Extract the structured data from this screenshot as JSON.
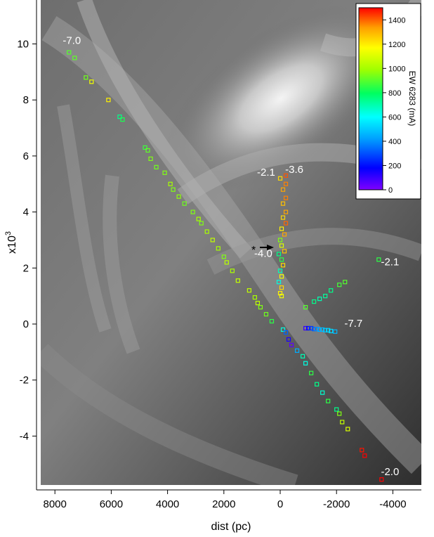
{
  "chart_data": {
    "type": "scatter",
    "xlabel": "dist (pc)",
    "ylabel": "x10",
    "ylabel_exponent": "3",
    "xlim": [
      8600,
      -5000
    ],
    "ylim": [
      -5.7,
      11.5
    ],
    "x_ticks": [
      8000,
      6000,
      4000,
      2000,
      0,
      -2000,
      -4000
    ],
    "x_tick_labels": [
      "8000",
      "6000",
      "4000",
      "2000",
      "0",
      "-2000",
      "-4000"
    ],
    "y_ticks": [
      -4,
      -2,
      0,
      2,
      4,
      6,
      8,
      10
    ],
    "y_tick_labels": [
      "-4",
      "-2",
      "0",
      "2",
      "4",
      "6",
      "8",
      "10"
    ],
    "background": "grayscale spiral galaxy image",
    "colorbar": {
      "label": "EW 6283 (mA)",
      "ticks": [
        0,
        200,
        400,
        600,
        800,
        1000,
        1200,
        1400
      ],
      "tick_labels": [
        "0",
        "200",
        "400",
        "600",
        "800",
        "1000",
        "1200",
        "1400"
      ],
      "range": [
        0,
        1500
      ],
      "colors": [
        "#7f00ff",
        "#0000ff",
        "#00a0ff",
        "#00ffff",
        "#00ff60",
        "#a0ff00",
        "#ffff00",
        "#ffa000",
        "#ff0000"
      ]
    },
    "sun_marker": "*",
    "annotations": [
      {
        "text": "-7.0",
        "x": 7400,
        "y": 10.0
      },
      {
        "text": "-2.1",
        "x": 500,
        "y": 5.3
      },
      {
        "text": "-3.6",
        "x": -500,
        "y": 5.4
      },
      {
        "text": "-4.0",
        "x": 600,
        "y": 2.4
      },
      {
        "text": "-2.1",
        "x": -3900,
        "y": 2.1
      },
      {
        "text": "-7.7",
        "x": -2600,
        "y": -0.1
      },
      {
        "text": "-2.0",
        "x": -3900,
        "y": -5.4
      }
    ],
    "series": [
      {
        "id": "sightline-7.0",
        "points": [
          [
            7500,
            9.7,
            850
          ],
          [
            7300,
            9.5,
            860
          ],
          [
            6900,
            8.8,
            880
          ],
          [
            6700,
            8.65,
            1100
          ],
          [
            6100,
            8.0,
            1150
          ],
          [
            5700,
            7.4,
            700
          ],
          [
            5600,
            7.3,
            780
          ],
          [
            4800,
            6.3,
            820
          ],
          [
            4700,
            6.2,
            860
          ],
          [
            4600,
            5.9,
            900
          ],
          [
            4400,
            5.6,
            880
          ],
          [
            4100,
            5.4,
            900
          ],
          [
            3900,
            5.0,
            950
          ],
          [
            3800,
            4.8,
            900
          ],
          [
            3600,
            4.55,
            920
          ],
          [
            3400,
            4.3,
            880
          ],
          [
            3100,
            4.0,
            900
          ],
          [
            2900,
            3.75,
            950
          ],
          [
            2800,
            3.6,
            900
          ],
          [
            2600,
            3.3,
            950
          ],
          [
            2400,
            3.0,
            1000
          ],
          [
            2200,
            2.7,
            950
          ],
          [
            2000,
            2.4,
            900
          ],
          [
            1900,
            2.2,
            980
          ],
          [
            1700,
            1.9,
            960
          ],
          [
            1500,
            1.55,
            1000
          ],
          [
            1100,
            1.2,
            1000
          ],
          [
            900,
            0.95,
            950
          ],
          [
            800,
            0.75,
            1000
          ],
          [
            700,
            0.6,
            900
          ],
          [
            500,
            0.35,
            880
          ],
          [
            300,
            0.1,
            800
          ],
          [
            -100,
            -0.2,
            600
          ],
          [
            -200,
            -0.3,
            300
          ],
          [
            -300,
            -0.55,
            150
          ],
          [
            -400,
            -0.75,
            50
          ],
          [
            -600,
            -0.95,
            400
          ],
          [
            -800,
            -1.15,
            650
          ],
          [
            -900,
            -1.4,
            600
          ],
          [
            -1100,
            -1.75,
            800
          ],
          [
            -1300,
            -2.15,
            700
          ],
          [
            -1500,
            -2.45,
            620
          ],
          [
            -1700,
            -2.75,
            800
          ],
          [
            -2000,
            -3.05,
            700
          ],
          [
            -2100,
            -3.2,
            900
          ],
          [
            -2200,
            -3.5,
            1000
          ],
          [
            -2400,
            -3.75,
            1050
          ],
          [
            -2900,
            -4.5,
            1480
          ],
          [
            -3000,
            -4.7,
            1500
          ],
          [
            -3600,
            -5.55,
            1500
          ]
        ]
      },
      {
        "id": "sightline-2.1-3.6",
        "points": [
          [
            0,
            5.2,
            1200
          ],
          [
            -200,
            5.3,
            1400
          ],
          [
            -200,
            5.0,
            1350
          ],
          [
            -100,
            4.8,
            1300
          ],
          [
            -200,
            4.5,
            1350
          ],
          [
            -100,
            4.3,
            1250
          ],
          [
            -200,
            4.0,
            1300
          ],
          [
            -100,
            3.8,
            1200
          ],
          [
            -200,
            3.6,
            1380
          ],
          [
            -50,
            3.4,
            1150
          ],
          [
            -150,
            3.2,
            1300
          ],
          [
            0,
            3.0,
            900
          ],
          [
            -50,
            2.8,
            1050
          ],
          [
            -150,
            2.6,
            1250
          ],
          [
            50,
            2.5,
            700
          ],
          [
            -50,
            2.3,
            800
          ],
          [
            -100,
            2.1,
            1200
          ],
          [
            0,
            1.9,
            650
          ],
          [
            -50,
            1.7,
            1100
          ],
          [
            50,
            1.5,
            600
          ],
          [
            -50,
            1.3,
            1200
          ],
          [
            0,
            1.1,
            1150
          ],
          [
            -50,
            1.0,
            1100
          ]
        ]
      },
      {
        "id": "sightline-2.1-east",
        "points": [
          [
            -3500,
            2.3,
            800
          ],
          [
            -2300,
            1.5,
            850
          ],
          [
            -2100,
            1.4,
            830
          ],
          [
            -1800,
            1.2,
            700
          ],
          [
            -1600,
            1.0,
            680
          ],
          [
            -1400,
            0.9,
            650
          ],
          [
            -1200,
            0.8,
            700
          ],
          [
            -900,
            0.6,
            850
          ]
        ]
      },
      {
        "id": "sightline-7.7",
        "points": [
          [
            -900,
            -0.15,
            100
          ],
          [
            -1000,
            -0.15,
            200
          ],
          [
            -1100,
            -0.15,
            250
          ],
          [
            -1200,
            -0.18,
            300
          ],
          [
            -1300,
            -0.18,
            350
          ],
          [
            -1400,
            -0.2,
            400
          ],
          [
            -1500,
            -0.2,
            420
          ],
          [
            -1600,
            -0.22,
            450
          ],
          [
            -1700,
            -0.22,
            480
          ],
          [
            -1800,
            -0.25,
            500
          ],
          [
            -1950,
            -0.27,
            420
          ]
        ]
      }
    ]
  }
}
